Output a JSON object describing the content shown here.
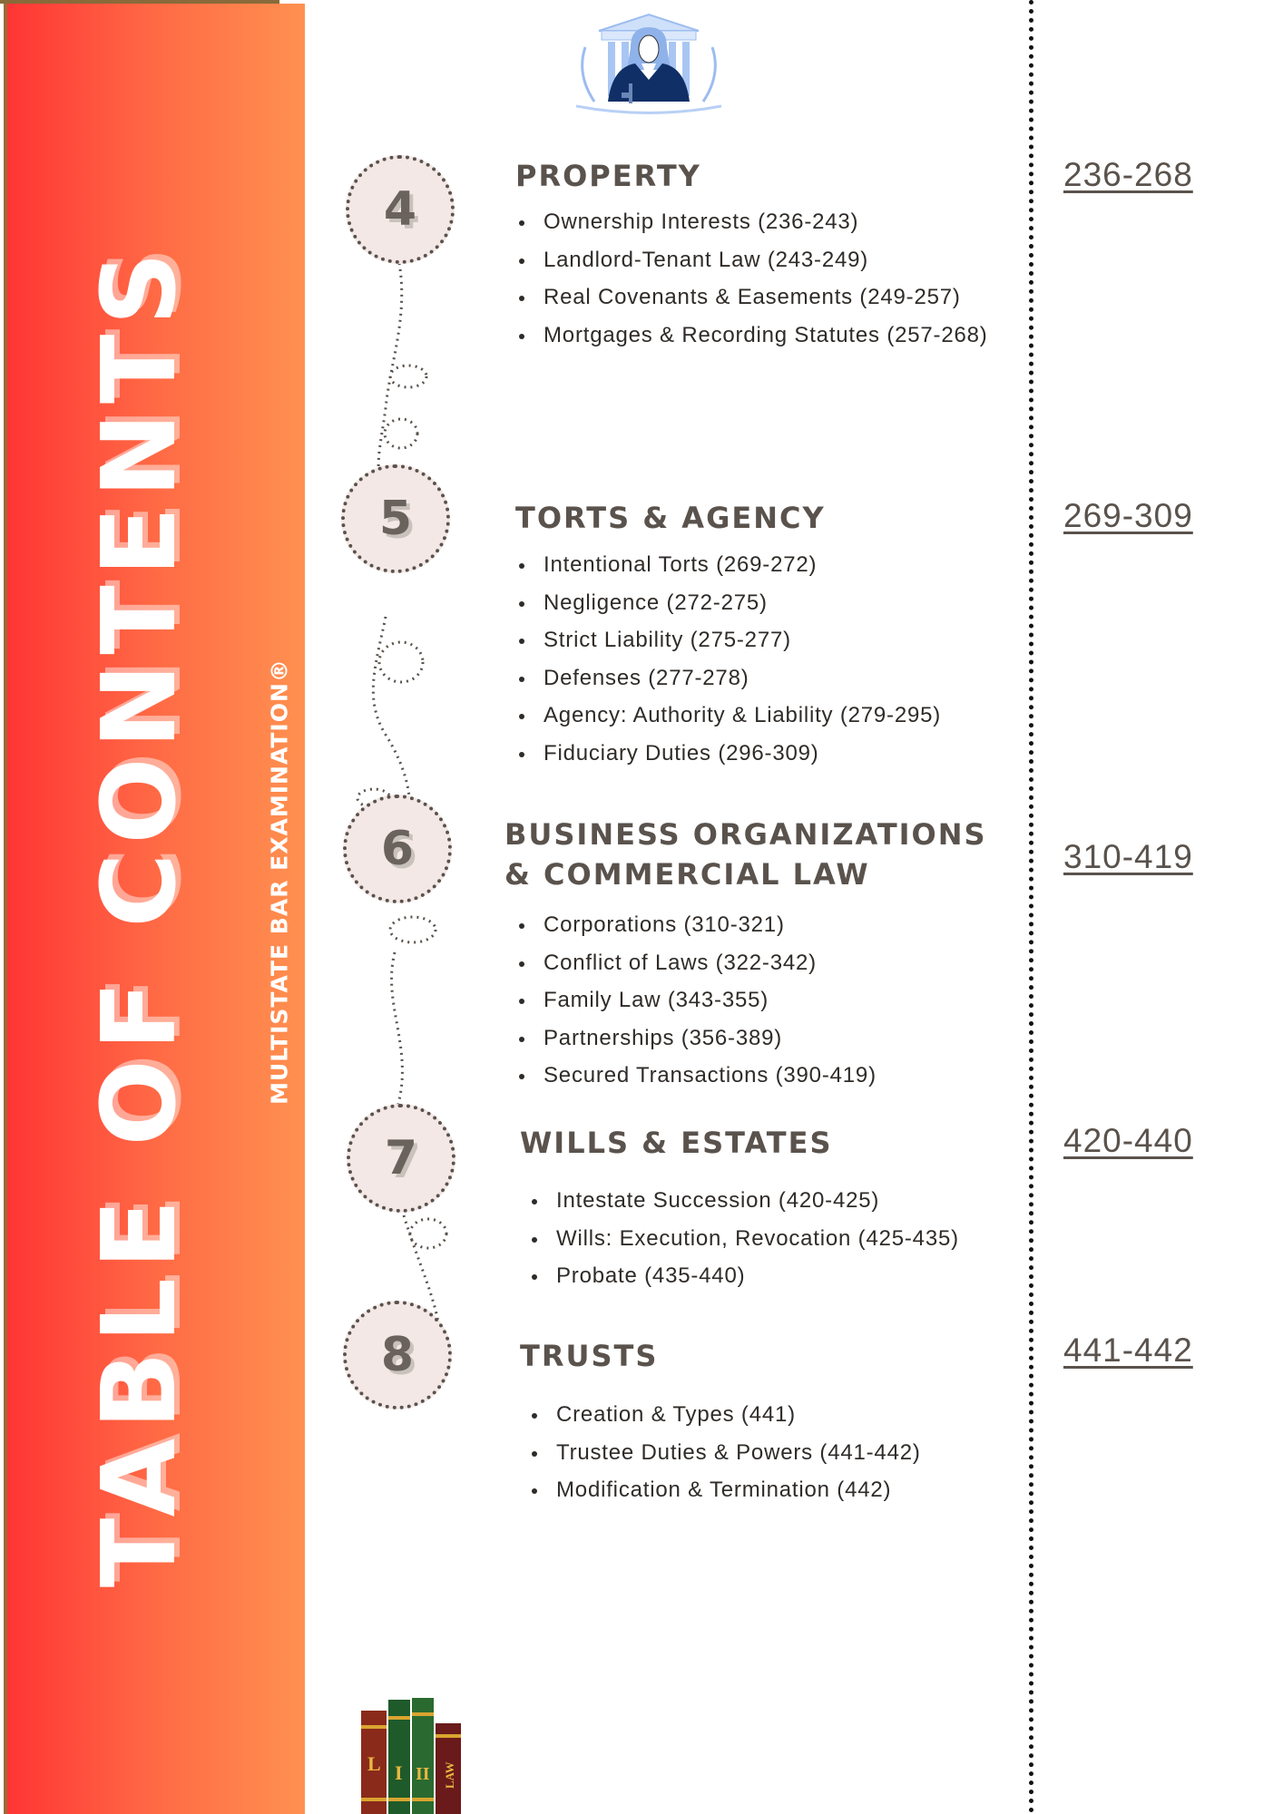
{
  "sidebar": {
    "title": "TABLE OF CONTENTS",
    "subtitle": "MULTISTATE BAR EXAMINATION®"
  },
  "colors": {
    "sidebar_gradient_start": "#ff3535",
    "sidebar_gradient_end": "#ff9150",
    "heading": "#5a524c",
    "circle_fill": "#f3e8e6"
  },
  "sections": [
    {
      "number": "4",
      "title": "PROPERTY",
      "pages": "236-268",
      "items": [
        "Ownership Interests (236-243)",
        "Landlord-Tenant Law (243-249)",
        "Real Covenants & Easements (249-257)",
        "Mortgages & Recording Statutes (257-268)"
      ]
    },
    {
      "number": "5",
      "title": "TORTS & AGENCY",
      "pages": "269-309",
      "items": [
        "Intentional Torts (269-272)",
        "Negligence (272-275)",
        "Strict Liability (275-277)",
        "Defenses (277-278)",
        "Agency: Authority & Liability (279-295)",
        "Fiduciary Duties (296-309)"
      ]
    },
    {
      "number": "6",
      "title": "BUSINESS ORGANIZATIONS & COMMERCIAL LAW",
      "pages": "310-419",
      "items": [
        "Corporations (310-321)",
        "Conflict of Laws (322-342)",
        "Family Law (343-355)",
        "Partnerships (356-389)",
        "Secured Transactions (390-419)"
      ]
    },
    {
      "number": "7",
      "title": "WILLS & ESTATES",
      "pages": "420-440",
      "items": [
        "Intestate Succession (420-425)",
        "Wills: Execution, Revocation (425-435)",
        "Probate (435-440)"
      ]
    },
    {
      "number": "8",
      "title": "TRUSTS",
      "pages": "441-442",
      "items": [
        "Creation & Types (441)",
        "Trustee Duties & Powers (441-442)",
        "Modification & Termination (442)"
      ]
    }
  ],
  "icons": {
    "header": "judge-courthouse-illustration",
    "footer": "law-books-icon"
  },
  "book_labels": [
    "L",
    "I",
    "II",
    "LAW"
  ]
}
